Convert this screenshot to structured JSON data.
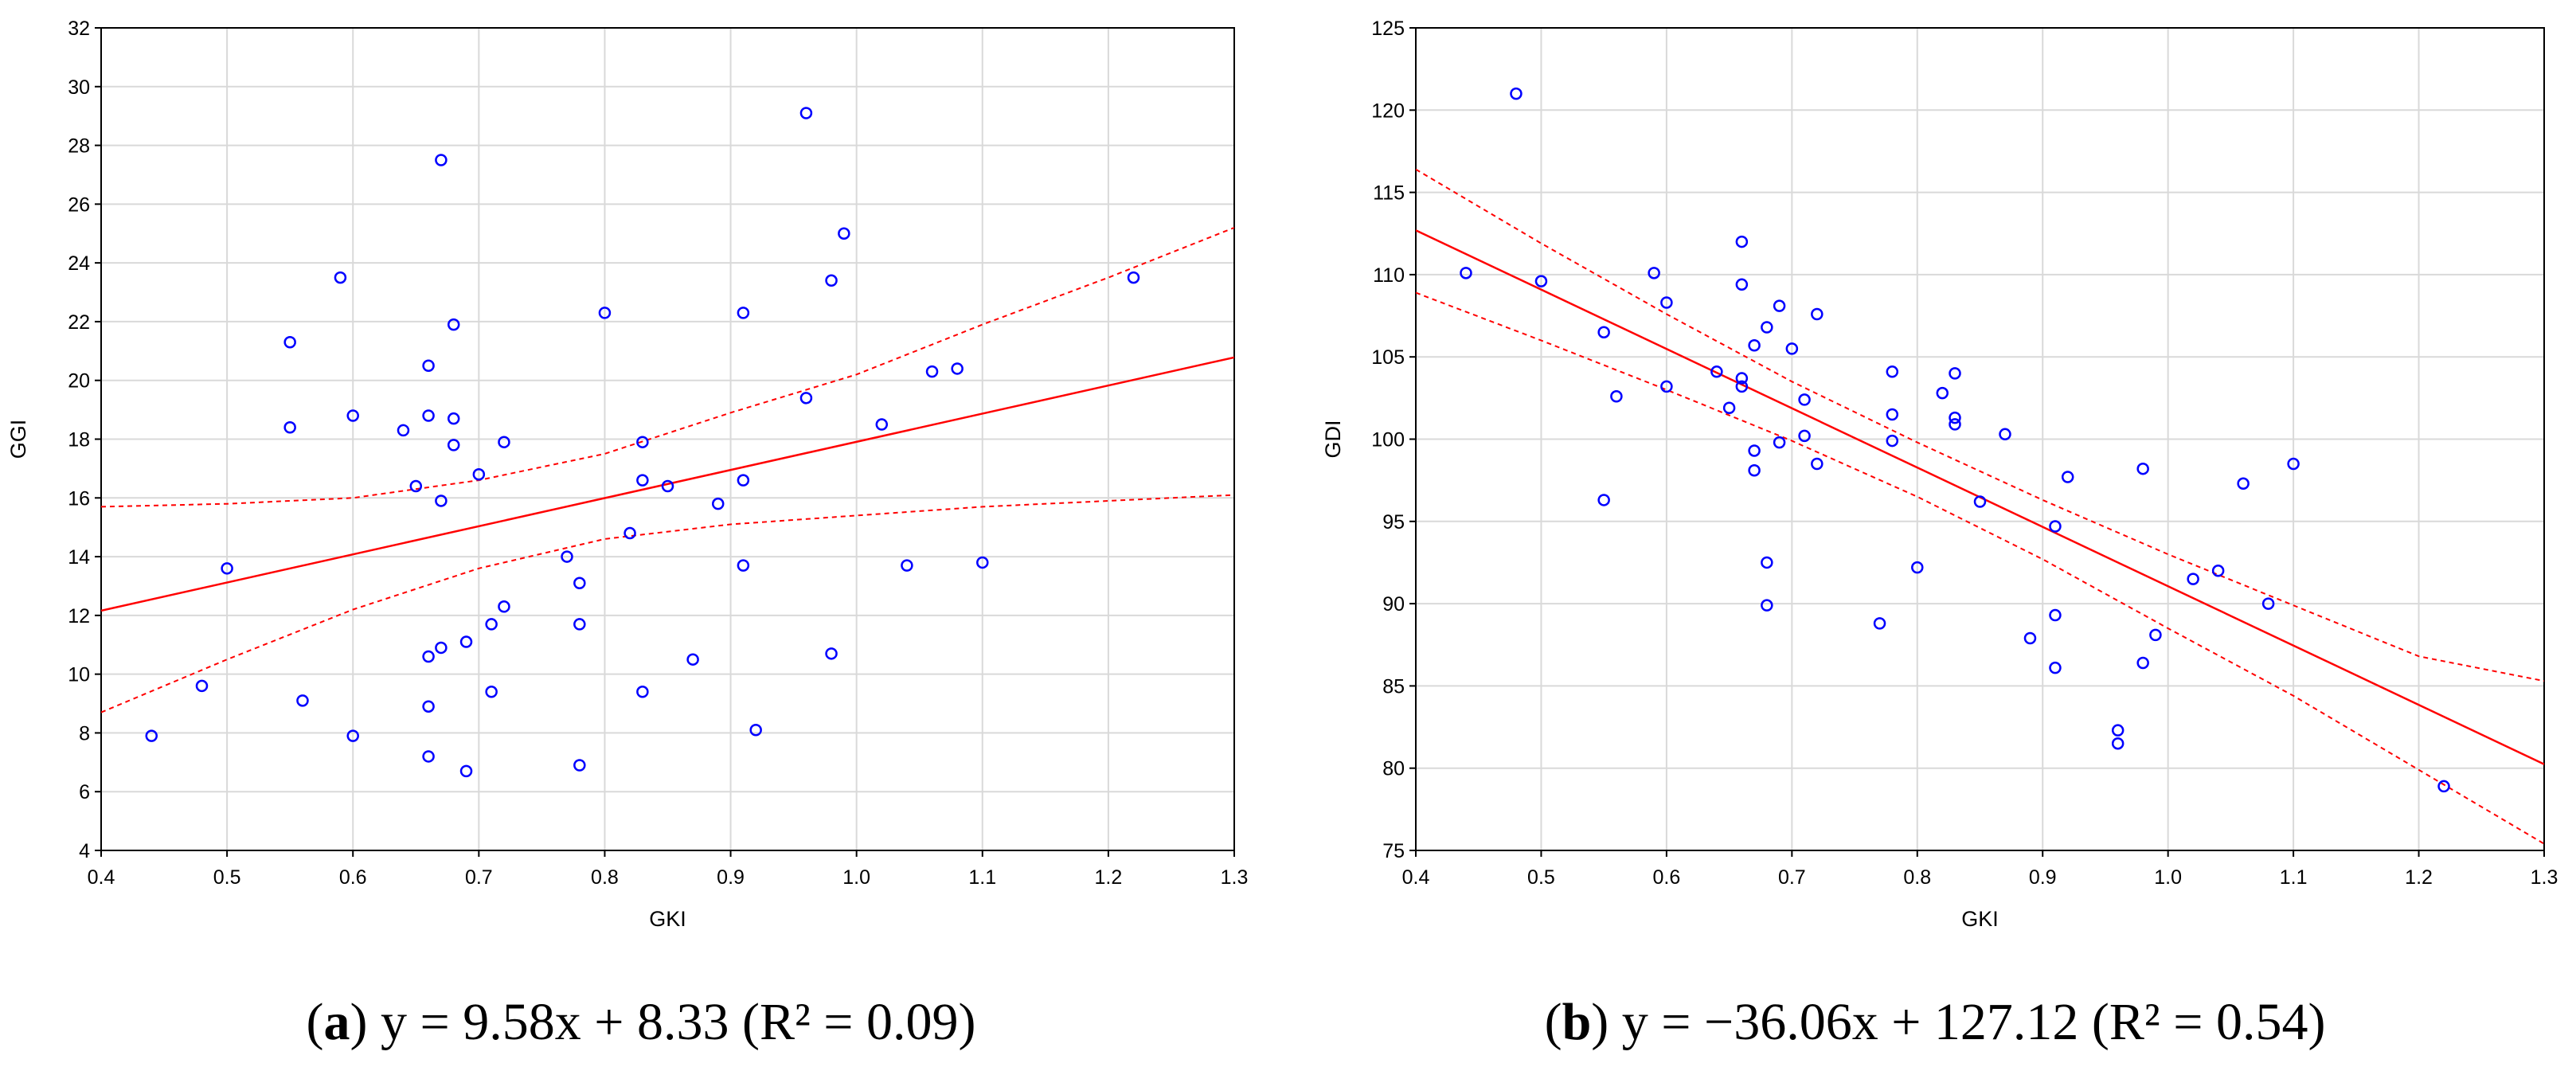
{
  "chart_data": [
    {
      "type": "scatter",
      "panel_letter": "a",
      "caption_equation": "y = 9.58x + 8.33 (R² = 0.09)",
      "xlabel": "GKI",
      "ylabel": "GGI",
      "xlim": [
        0.4,
        1.3
      ],
      "ylim": [
        4,
        32
      ],
      "xticks": [
        "0.4",
        "0.5",
        "0.6",
        "0.7",
        "0.8",
        "0.9",
        "1.0",
        "1.1",
        "1.2",
        "1.3"
      ],
      "yticks": [
        "4",
        "6",
        "8",
        "10",
        "12",
        "14",
        "16",
        "18",
        "20",
        "22",
        "24",
        "26",
        "28",
        "30",
        "32"
      ],
      "grid": true,
      "points": [
        [
          0.44,
          7.9
        ],
        [
          0.48,
          9.6
        ],
        [
          0.5,
          13.6
        ],
        [
          0.55,
          21.3
        ],
        [
          0.55,
          18.4
        ],
        [
          0.56,
          9.1
        ],
        [
          0.59,
          23.5
        ],
        [
          0.6,
          18.8
        ],
        [
          0.6,
          7.9
        ],
        [
          0.64,
          18.3
        ],
        [
          0.65,
          16.4
        ],
        [
          0.66,
          20.5
        ],
        [
          0.66,
          18.8
        ],
        [
          0.66,
          10.6
        ],
        [
          0.66,
          8.9
        ],
        [
          0.66,
          7.2
        ],
        [
          0.67,
          27.5
        ],
        [
          0.67,
          15.9
        ],
        [
          0.67,
          10.9
        ],
        [
          0.68,
          21.9
        ],
        [
          0.68,
          18.7
        ],
        [
          0.68,
          17.8
        ],
        [
          0.69,
          11.1
        ],
        [
          0.69,
          6.7
        ],
        [
          0.7,
          16.8
        ],
        [
          0.71,
          11.7
        ],
        [
          0.71,
          9.4
        ],
        [
          0.72,
          17.9
        ],
        [
          0.72,
          12.3
        ],
        [
          0.77,
          14.0
        ],
        [
          0.78,
          13.1
        ],
        [
          0.78,
          11.7
        ],
        [
          0.78,
          6.9
        ],
        [
          0.8,
          22.3
        ],
        [
          0.82,
          14.8
        ],
        [
          0.83,
          17.9
        ],
        [
          0.83,
          16.6
        ],
        [
          0.83,
          9.4
        ],
        [
          0.85,
          16.4
        ],
        [
          0.87,
          10.5
        ],
        [
          0.89,
          15.8
        ],
        [
          0.91,
          22.3
        ],
        [
          0.91,
          16.6
        ],
        [
          0.91,
          13.7
        ],
        [
          0.92,
          8.1
        ],
        [
          0.96,
          29.1
        ],
        [
          0.96,
          19.4
        ],
        [
          0.98,
          23.4
        ],
        [
          0.98,
          10.7
        ],
        [
          0.99,
          25.0
        ],
        [
          1.02,
          18.5
        ],
        [
          1.04,
          13.7
        ],
        [
          1.06,
          20.3
        ],
        [
          1.08,
          20.4
        ],
        [
          1.1,
          13.8
        ],
        [
          1.22,
          23.5
        ]
      ],
      "regression": {
        "slope": 9.58,
        "intercept": 8.33
      },
      "confidence_upper": [
        [
          0.4,
          15.7
        ],
        [
          0.5,
          15.8
        ],
        [
          0.6,
          16.0
        ],
        [
          0.7,
          16.6
        ],
        [
          0.8,
          17.5
        ],
        [
          0.9,
          18.9
        ],
        [
          1.0,
          20.2
        ],
        [
          1.1,
          21.9
        ],
        [
          1.2,
          23.5
        ],
        [
          1.3,
          25.2
        ]
      ],
      "confidence_lower": [
        [
          0.4,
          8.7
        ],
        [
          0.5,
          10.5
        ],
        [
          0.6,
          12.2
        ],
        [
          0.7,
          13.6
        ],
        [
          0.8,
          14.6
        ],
        [
          0.9,
          15.1
        ],
        [
          1.0,
          15.4
        ],
        [
          1.1,
          15.7
        ],
        [
          1.2,
          15.9
        ],
        [
          1.3,
          16.1
        ]
      ],
      "colors": {
        "points": "#0000ff",
        "fit": "#ff0000",
        "grid": "#d9d9d9"
      }
    },
    {
      "type": "scatter",
      "panel_letter": "b",
      "caption_equation": "y = −36.06x + 127.12 (R² = 0.54)",
      "xlabel": "GKI",
      "ylabel": "GDI",
      "xlim": [
        0.4,
        1.3
      ],
      "ylim": [
        75,
        125
      ],
      "xticks": [
        "0.4",
        "0.5",
        "0.6",
        "0.7",
        "0.8",
        "0.9",
        "1.0",
        "1.1",
        "1.2",
        "1.3"
      ],
      "yticks": [
        "75",
        "80",
        "85",
        "90",
        "95",
        "100",
        "105",
        "110",
        "115",
        "120",
        "125"
      ],
      "grid": true,
      "points": [
        [
          0.44,
          110.1
        ],
        [
          0.48,
          121.0
        ],
        [
          0.5,
          109.6
        ],
        [
          0.55,
          106.5
        ],
        [
          0.55,
          96.3
        ],
        [
          0.56,
          102.6
        ],
        [
          0.59,
          110.1
        ],
        [
          0.6,
          108.3
        ],
        [
          0.6,
          103.2
        ],
        [
          0.64,
          104.1
        ],
        [
          0.65,
          101.9
        ],
        [
          0.66,
          112.0
        ],
        [
          0.66,
          109.4
        ],
        [
          0.66,
          103.7
        ],
        [
          0.66,
          103.2
        ],
        [
          0.67,
          105.7
        ],
        [
          0.67,
          99.3
        ],
        [
          0.67,
          98.1
        ],
        [
          0.68,
          106.8
        ],
        [
          0.68,
          92.5
        ],
        [
          0.68,
          89.9
        ],
        [
          0.69,
          108.1
        ],
        [
          0.69,
          99.8
        ],
        [
          0.7,
          105.5
        ],
        [
          0.71,
          102.4
        ],
        [
          0.71,
          100.2
        ],
        [
          0.72,
          107.6
        ],
        [
          0.72,
          98.5
        ],
        [
          0.77,
          88.8
        ],
        [
          0.78,
          104.1
        ],
        [
          0.78,
          101.5
        ],
        [
          0.78,
          99.9
        ],
        [
          0.8,
          92.2
        ],
        [
          0.82,
          102.8
        ],
        [
          0.83,
          104.0
        ],
        [
          0.83,
          101.3
        ],
        [
          0.83,
          100.9
        ],
        [
          0.85,
          96.2
        ],
        [
          0.87,
          100.3
        ],
        [
          0.89,
          87.9
        ],
        [
          0.91,
          94.7
        ],
        [
          0.91,
          89.3
        ],
        [
          0.91,
          86.1
        ],
        [
          0.92,
          97.7
        ],
        [
          0.96,
          82.3
        ],
        [
          0.96,
          81.5
        ],
        [
          0.98,
          98.2
        ],
        [
          0.98,
          86.4
        ],
        [
          0.99,
          88.1
        ],
        [
          1.02,
          91.5
        ],
        [
          1.04,
          92.0
        ],
        [
          1.06,
          97.3
        ],
        [
          1.08,
          90.0
        ],
        [
          1.1,
          98.5
        ],
        [
          1.22,
          78.9
        ]
      ],
      "regression": {
        "slope": -36.06,
        "intercept": 127.12
      },
      "confidence_upper": [
        [
          0.4,
          116.4
        ],
        [
          0.5,
          111.9
        ],
        [
          0.6,
          107.6
        ],
        [
          0.7,
          103.5
        ],
        [
          0.8,
          99.8
        ],
        [
          0.9,
          96.3
        ],
        [
          1.0,
          93.0
        ],
        [
          1.1,
          89.9
        ],
        [
          1.2,
          86.8
        ],
        [
          1.3,
          85.3
        ]
      ],
      "confidence_lower": [
        [
          0.4,
          108.9
        ],
        [
          0.5,
          106.0
        ],
        [
          0.6,
          103.0
        ],
        [
          0.7,
          99.9
        ],
        [
          0.8,
          96.5
        ],
        [
          0.9,
          92.7
        ],
        [
          1.0,
          88.5
        ],
        [
          1.1,
          84.4
        ],
        [
          1.2,
          79.9
        ],
        [
          1.3,
          75.4
        ]
      ],
      "colors": {
        "points": "#0000ff",
        "fit": "#ff0000",
        "grid": "#d9d9d9"
      }
    }
  ]
}
